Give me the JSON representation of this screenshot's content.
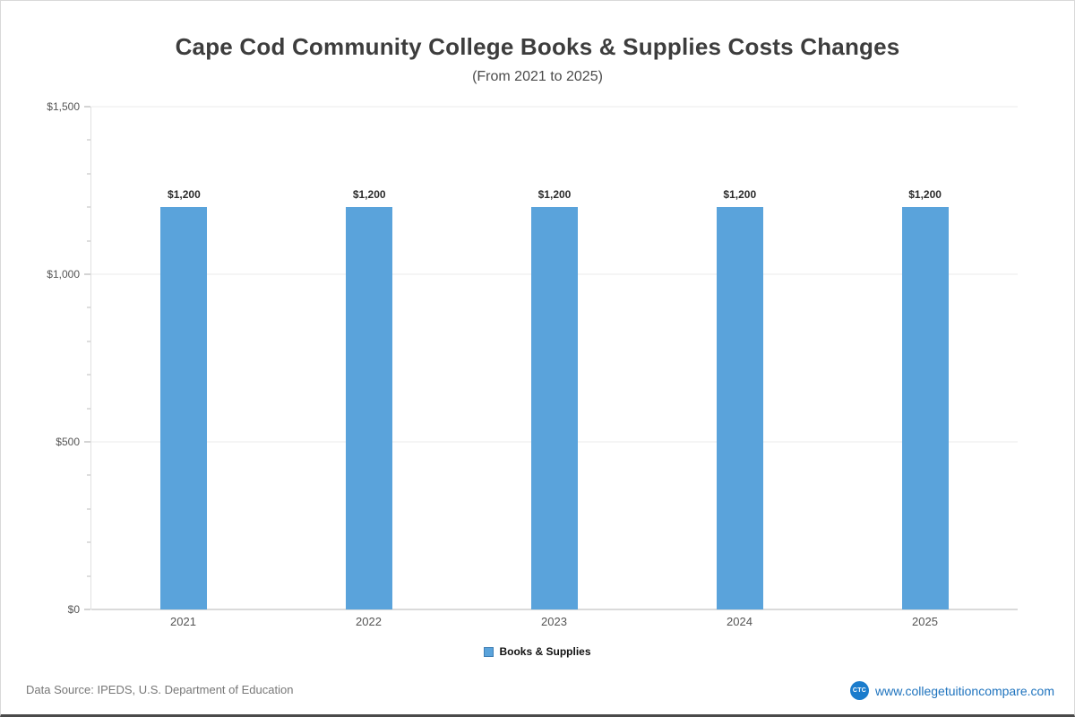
{
  "page": {
    "title": "Cape Cod Community College Books & Supplies Costs Changes",
    "subtitle": "(From 2021 to 2025)"
  },
  "chart_data": {
    "type": "bar",
    "title": "Cape Cod Community College Books & Supplies Costs Changes",
    "subtitle": "(From 2021 to 2025)",
    "categories": [
      "2021",
      "2022",
      "2023",
      "2024",
      "2025"
    ],
    "values": [
      1200,
      1200,
      1200,
      1200,
      1200
    ],
    "value_labels": [
      "$1,200",
      "$1,200",
      "$1,200",
      "$1,200",
      "$1,200"
    ],
    "xlabel": "",
    "ylabel": "",
    "ylim": [
      0,
      1500
    ],
    "yticks": [
      {
        "value": 0,
        "label": "$0"
      },
      {
        "value": 500,
        "label": "$500"
      },
      {
        "value": 1000,
        "label": "$1,000"
      },
      {
        "value": 1500,
        "label": "$1,500"
      }
    ],
    "minor_tick_step": 100,
    "grid": true,
    "bar_color": "#5aa3db",
    "legend_position": "bottom",
    "legend": [
      {
        "label": "Books & Supplies",
        "color": "#5aa3db"
      }
    ]
  },
  "footer": {
    "source": "Data Source: IPEDS, U.S. Department of Education",
    "site": "www.collegetuitioncompare.com",
    "logo_text": "CTC"
  }
}
